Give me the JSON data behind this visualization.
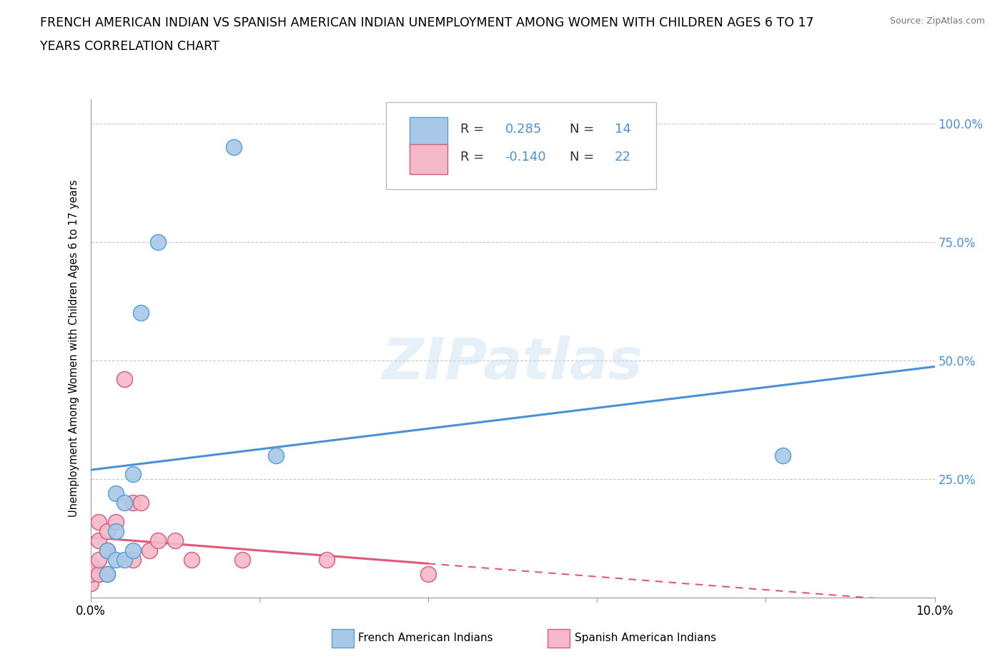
{
  "title_line1": "FRENCH AMERICAN INDIAN VS SPANISH AMERICAN INDIAN UNEMPLOYMENT AMONG WOMEN WITH CHILDREN AGES 6 TO 17",
  "title_line2": "YEARS CORRELATION CHART",
  "source_text": "Source: ZipAtlas.com",
  "ylabel": "Unemployment Among Women with Children Ages 6 to 17 years",
  "xlim": [
    0.0,
    0.1
  ],
  "ylim": [
    0.0,
    1.05
  ],
  "x_ticks": [
    0.0,
    0.02,
    0.04,
    0.06,
    0.08,
    0.1
  ],
  "x_tick_labels": [
    "0.0%",
    "",
    "",
    "",
    "",
    "10.0%"
  ],
  "y_ticks": [
    0.0,
    0.25,
    0.5,
    0.75,
    1.0
  ],
  "y_tick_labels_right": [
    "",
    "25.0%",
    "50.0%",
    "75.0%",
    "100.0%"
  ],
  "french_x": [
    0.002,
    0.002,
    0.003,
    0.003,
    0.003,
    0.004,
    0.004,
    0.005,
    0.005,
    0.006,
    0.008,
    0.017,
    0.022,
    0.082
  ],
  "french_y": [
    0.05,
    0.1,
    0.08,
    0.14,
    0.22,
    0.08,
    0.2,
    0.1,
    0.26,
    0.6,
    0.75,
    0.95,
    0.3,
    0.3
  ],
  "spanish_x": [
    0.0,
    0.0,
    0.0,
    0.001,
    0.001,
    0.001,
    0.001,
    0.002,
    0.002,
    0.002,
    0.003,
    0.004,
    0.005,
    0.005,
    0.006,
    0.007,
    0.008,
    0.01,
    0.012,
    0.018,
    0.028,
    0.04
  ],
  "spanish_y": [
    0.03,
    0.05,
    0.07,
    0.05,
    0.08,
    0.12,
    0.16,
    0.05,
    0.1,
    0.14,
    0.16,
    0.46,
    0.08,
    0.2,
    0.2,
    0.1,
    0.12,
    0.12,
    0.08,
    0.08,
    0.08,
    0.05
  ],
  "french_color": "#a8c8e8",
  "french_edge_color": "#5a9fd4",
  "spanish_color": "#f4b8c8",
  "spanish_edge_color": "#d46080",
  "french_R": 0.285,
  "french_N": 14,
  "spanish_R": -0.14,
  "spanish_N": 22,
  "line_color_french": "#4a90d9",
  "line_color_spanish": "#e05878",
  "watermark": "ZIPatlas",
  "background_color": "#ffffff",
  "grid_color": "#c8c8c8",
  "legend_text_color_R": "#4a90d9",
  "legend_text_color_black": "#333333"
}
